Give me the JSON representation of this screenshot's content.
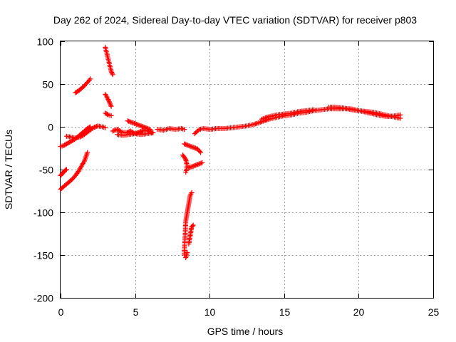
{
  "chart_data": {
    "type": "scatter",
    "title": "Day 262 of 2024, Sidereal Day-to-day VTEC variation (SDTVAR) for receiver p803",
    "xlabel": "GPS time / hours",
    "ylabel": "SDTVAR / TECUs",
    "xlim": [
      0,
      25
    ],
    "ylim": [
      -200,
      100
    ],
    "xticks": [
      0,
      5,
      10,
      15,
      20,
      25
    ],
    "yticks": [
      -200,
      -150,
      -100,
      -50,
      0,
      50,
      100
    ],
    "xtick_labels": [
      "0",
      "5",
      "10",
      "15",
      "20",
      "25"
    ],
    "ytick_labels": [
      "-200",
      "-150",
      "-100",
      "-50",
      "0",
      "50",
      "100"
    ],
    "grid": true,
    "marker": "+",
    "color": "#ff0000",
    "series": [
      {
        "name": "SDTVAR",
        "segments": [
          [
            [
              0.0,
              -73
            ],
            [
              0.2,
              -70
            ],
            [
              0.4,
              -67
            ],
            [
              0.6,
              -64
            ],
            [
              0.8,
              -61
            ],
            [
              1.0,
              -57
            ],
            [
              1.2,
              -52
            ],
            [
              1.4,
              -46
            ],
            [
              1.6,
              -40
            ],
            [
              1.7,
              -35
            ],
            [
              1.8,
              -30
            ]
          ],
          [
            [
              0.0,
              -57
            ],
            [
              0.1,
              -55
            ],
            [
              0.2,
              -53
            ],
            [
              0.3,
              -51
            ],
            [
              0.4,
              -50
            ]
          ],
          [
            [
              0.0,
              -23
            ],
            [
              0.2,
              -22
            ],
            [
              0.4,
              -20
            ],
            [
              0.6,
              -18
            ],
            [
              0.8,
              -16
            ],
            [
              1.0,
              -14
            ],
            [
              1.2,
              -11
            ],
            [
              1.4,
              -8
            ],
            [
              1.6,
              -5
            ],
            [
              1.8,
              -2
            ],
            [
              2.0,
              0
            ]
          ],
          [
            [
              0.4,
              -11
            ],
            [
              0.7,
              -12
            ],
            [
              1.0,
              -13
            ],
            [
              1.3,
              -12
            ],
            [
              1.6,
              -9
            ],
            [
              1.9,
              -5
            ],
            [
              2.2,
              -1
            ],
            [
              2.5,
              1
            ],
            [
              2.8,
              0
            ],
            [
              3.0,
              -1
            ]
          ],
          [
            [
              1.0,
              40
            ],
            [
              1.2,
              42
            ],
            [
              1.4,
              45
            ],
            [
              1.6,
              48
            ],
            [
              1.8,
              52
            ],
            [
              2.0,
              56
            ]
          ],
          [
            [
              3.0,
              93
            ],
            [
              3.1,
              86
            ],
            [
              3.2,
              79
            ],
            [
              3.3,
              72
            ],
            [
              3.4,
              65
            ],
            [
              3.5,
              61
            ]
          ],
          [
            [
              3.0,
              38
            ],
            [
              3.1,
              35
            ],
            [
              3.2,
              32
            ],
            [
              3.3,
              28
            ],
            [
              3.4,
              24
            ]
          ],
          [
            [
              3.0,
              16
            ],
            [
              3.2,
              14
            ],
            [
              3.4,
              13
            ]
          ],
          [
            [
              3.5,
              -5
            ],
            [
              3.8,
              -3
            ],
            [
              4.1,
              -6
            ],
            [
              4.4,
              -7
            ],
            [
              4.7,
              -5
            ],
            [
              5.0,
              -8
            ],
            [
              5.3,
              -6
            ],
            [
              5.6,
              -4
            ],
            [
              5.9,
              -5
            ],
            [
              6.2,
              -7
            ]
          ],
          [
            [
              3.8,
              -9
            ],
            [
              4.2,
              -10
            ],
            [
              4.6,
              -9
            ],
            [
              5.0,
              -8
            ],
            [
              5.4,
              -9
            ],
            [
              5.8,
              -8
            ],
            [
              6.2,
              -7
            ]
          ],
          [
            [
              4.5,
              7
            ],
            [
              4.8,
              5
            ],
            [
              5.1,
              3
            ],
            [
              5.4,
              1
            ],
            [
              5.7,
              -1
            ],
            [
              6.0,
              -3
            ]
          ],
          [
            [
              6.5,
              -3
            ],
            [
              6.9,
              -4
            ],
            [
              7.3,
              -2
            ],
            [
              7.7,
              -3
            ],
            [
              8.1,
              -2
            ],
            [
              8.3,
              -3
            ]
          ],
          [
            [
              8.3,
              -20
            ],
            [
              8.6,
              -22
            ],
            [
              8.9,
              -24
            ],
            [
              9.2,
              -26
            ],
            [
              9.4,
              -30
            ]
          ],
          [
            [
              8.2,
              -33
            ],
            [
              8.4,
              -38
            ],
            [
              8.5,
              -46
            ],
            [
              8.4,
              -53
            ]
          ],
          [
            [
              8.6,
              -48
            ],
            [
              8.9,
              -46
            ],
            [
              9.2,
              -44
            ],
            [
              9.5,
              -42
            ]
          ],
          [
            [
              8.3,
              -150
            ],
            [
              8.35,
              -130
            ],
            [
              8.4,
              -110
            ],
            [
              8.5,
              -100
            ],
            [
              8.6,
              -90
            ],
            [
              8.7,
              -80
            ],
            [
              8.8,
              -77
            ]
          ],
          [
            [
              8.4,
              -153
            ],
            [
              8.5,
              -147
            ]
          ],
          [
            [
              8.6,
              -137
            ],
            [
              8.7,
              -127
            ],
            [
              8.8,
              -117
            ],
            [
              8.9,
              -115
            ]
          ],
          [
            [
              9.0,
              -8
            ],
            [
              9.3,
              -3
            ],
            [
              9.6,
              -2
            ],
            [
              10.0,
              -3
            ],
            [
              10.5,
              -2
            ],
            [
              11.0,
              -2
            ],
            [
              11.5,
              -1
            ],
            [
              12.0,
              0
            ],
            [
              12.5,
              1
            ],
            [
              13.0,
              3
            ],
            [
              13.5,
              6
            ],
            [
              14.0,
              9
            ],
            [
              14.5,
              11
            ],
            [
              15.0,
              13
            ],
            [
              15.5,
              14
            ],
            [
              16.0,
              16
            ],
            [
              16.5,
              17
            ],
            [
              17.0,
              19
            ],
            [
              17.5,
              20
            ],
            [
              18.0,
              21
            ],
            [
              18.5,
              21
            ],
            [
              19.0,
              21
            ],
            [
              19.5,
              21
            ],
            [
              20.0,
              19
            ],
            [
              20.5,
              18
            ],
            [
              21.0,
              17
            ],
            [
              21.5,
              15
            ],
            [
              22.0,
              13
            ],
            [
              22.5,
              11
            ],
            [
              22.8,
              10
            ]
          ],
          [
            [
              13.5,
              9
            ],
            [
              14.0,
              12
            ],
            [
              14.5,
              14
            ],
            [
              15.0,
              15
            ],
            [
              15.5,
              16
            ],
            [
              16.0,
              18
            ],
            [
              16.5,
              19
            ],
            [
              17.0,
              20
            ]
          ],
          [
            [
              18.0,
              23
            ],
            [
              18.5,
              23
            ],
            [
              19.0,
              22
            ],
            [
              19.5,
              20
            ],
            [
              20.0,
              19
            ],
            [
              20.5,
              17
            ],
            [
              21.0,
              15
            ],
            [
              21.5,
              13
            ],
            [
              22.0,
              12
            ],
            [
              22.5,
              13
            ],
            [
              22.8,
              14
            ]
          ]
        ]
      }
    ]
  }
}
